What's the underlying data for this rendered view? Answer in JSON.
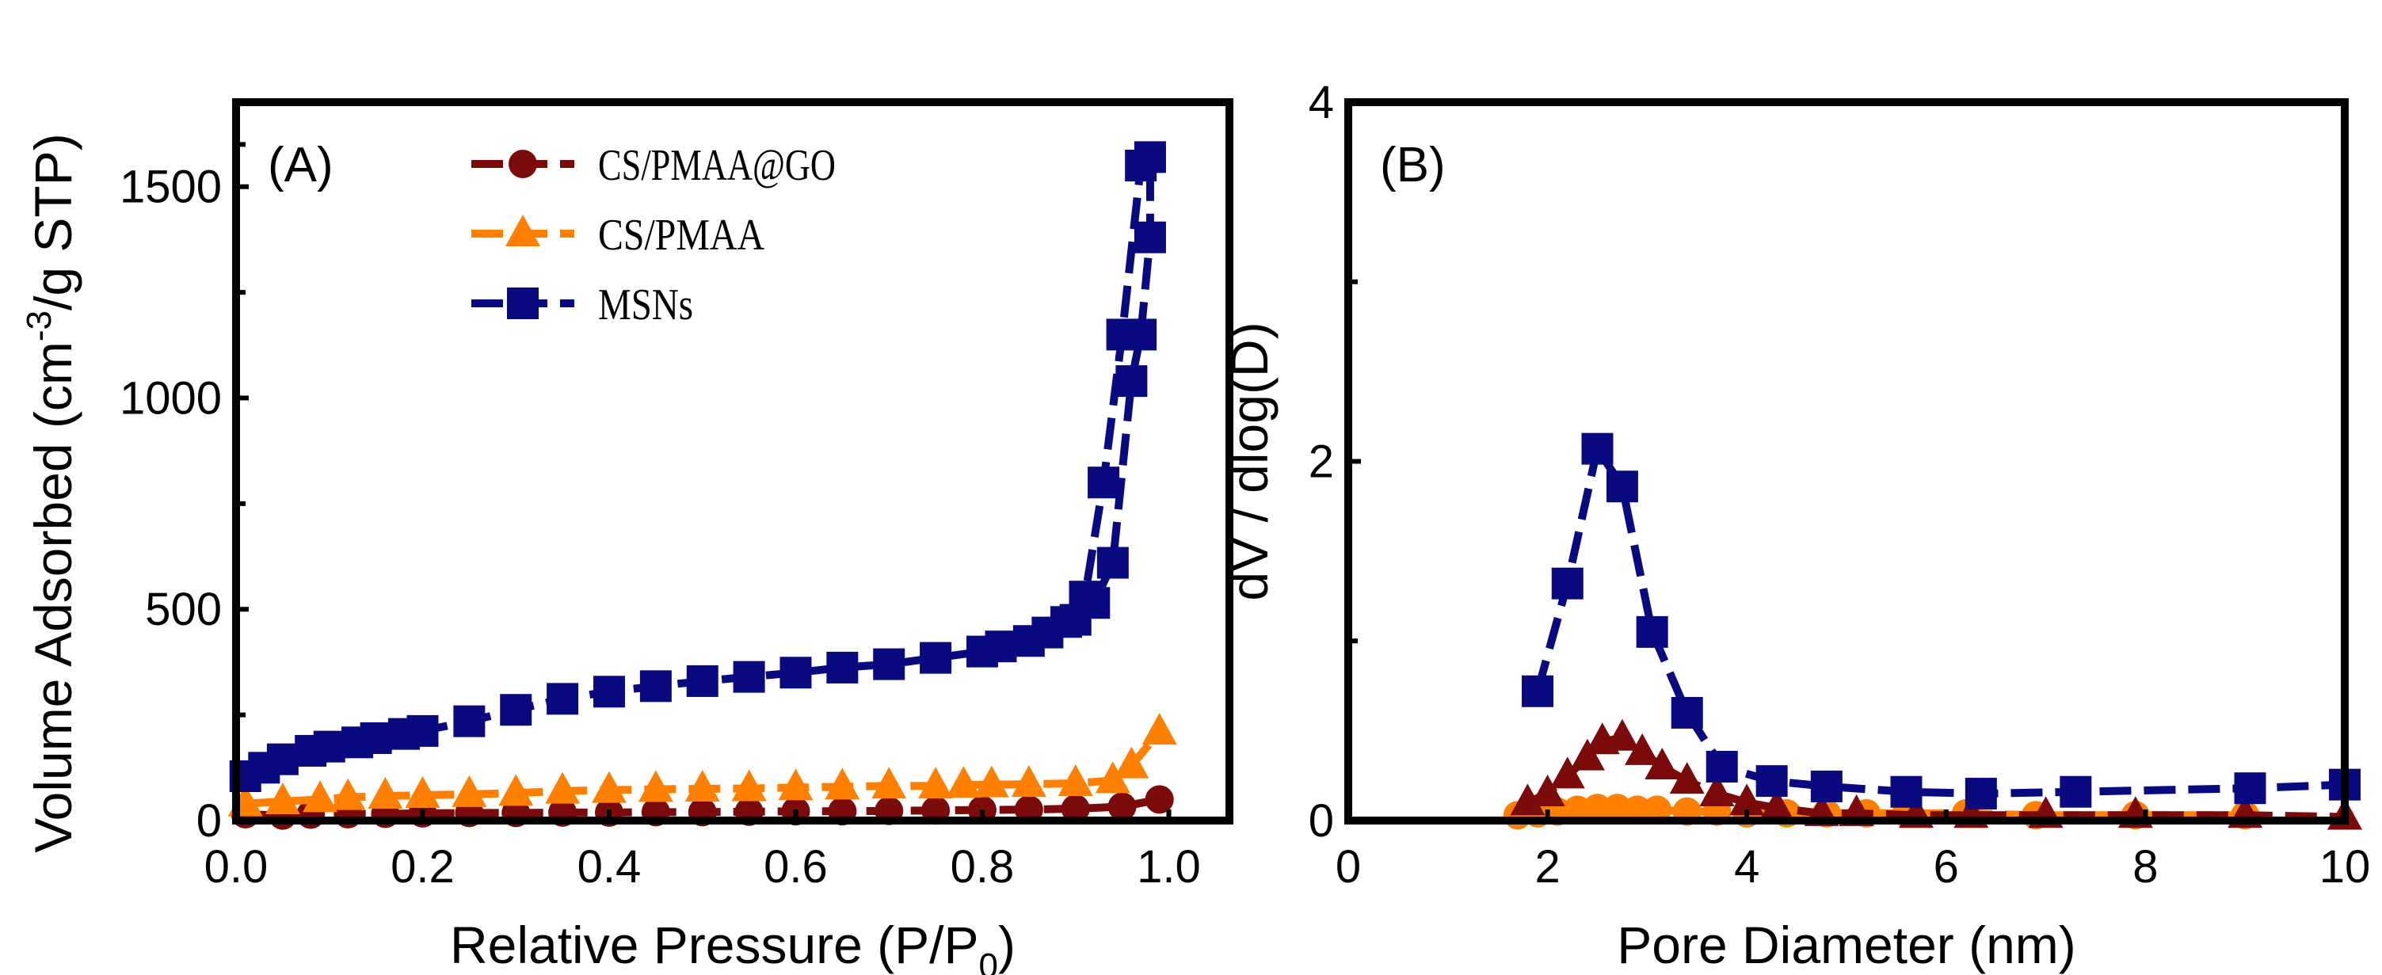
{
  "chart_data": [
    {
      "type": "scatter",
      "panel_label": "(A)",
      "xlabel": "Relative Pressure (P/P",
      "xlabel_sub": "0",
      "xlabel_end": ")",
      "ylabel": "Volume Adsorbed  (cm",
      "ylabel_sup": "-3",
      "ylabel_end": "/g STP)",
      "xlim": [
        0,
        1.065
      ],
      "ylim": [
        0,
        1700
      ],
      "xticks": [
        0.0,
        0.2,
        0.4,
        0.6,
        0.8,
        1.0
      ],
      "xtick_labels": [
        "0.0",
        "0.2",
        "0.4",
        "0.6",
        "0.8",
        "1.0"
      ],
      "yticks": [
        0,
        500,
        1000,
        1500
      ],
      "ytick_labels": [
        "0",
        "500",
        "1000",
        "1500"
      ],
      "legend_position": "top-center",
      "series": [
        {
          "name": "CS/PMAA@GO",
          "marker": "circle",
          "color": "#7b0a0a",
          "x": [
            0.01,
            0.05,
            0.08,
            0.12,
            0.16,
            0.2,
            0.25,
            0.3,
            0.35,
            0.4,
            0.45,
            0.5,
            0.55,
            0.6,
            0.65,
            0.7,
            0.75,
            0.8,
            0.85,
            0.9,
            0.95,
            0.99
          ],
          "y": [
            15,
            12,
            14,
            15,
            16,
            17,
            18,
            18,
            19,
            19,
            20,
            20,
            21,
            22,
            22,
            23,
            24,
            25,
            26,
            28,
            33,
            50
          ]
        },
        {
          "name": "CS/PMAA",
          "marker": "triangle",
          "color": "#ff8000",
          "x": [
            0.01,
            0.05,
            0.09,
            0.12,
            0.16,
            0.2,
            0.25,
            0.3,
            0.35,
            0.4,
            0.45,
            0.5,
            0.55,
            0.6,
            0.65,
            0.7,
            0.75,
            0.78,
            0.81,
            0.85,
            0.9,
            0.94,
            0.96,
            0.99
          ],
          "y": [
            40,
            45,
            50,
            55,
            58,
            60,
            62,
            65,
            70,
            72,
            74,
            75,
            76,
            78,
            80,
            82,
            82,
            84,
            85,
            86,
            88,
            95,
            130,
            210
          ]
        },
        {
          "name": "MSNs",
          "marker": "square",
          "color": "#0a0a80",
          "x": [
            0.01,
            0.03,
            0.05,
            0.08,
            0.1,
            0.13,
            0.15,
            0.18,
            0.2,
            0.25,
            0.3,
            0.35,
            0.4,
            0.45,
            0.5,
            0.55,
            0.6,
            0.65,
            0.7,
            0.75,
            0.8,
            0.82,
            0.85,
            0.87,
            0.89,
            0.91,
            0.93,
            0.95,
            0.97,
            0.98,
            0.98,
            0.97,
            0.96,
            0.94,
            0.92,
            0.9
          ],
          "y": [
            105,
            125,
            145,
            165,
            175,
            185,
            195,
            205,
            212,
            235,
            262,
            288,
            305,
            318,
            330,
            340,
            350,
            362,
            370,
            385,
            400,
            412,
            425,
            445,
            470,
            530,
            800,
            1150,
            1550,
            1570,
            1380,
            1150,
            1040,
            610,
            515,
            475
          ]
        }
      ]
    },
    {
      "type": "scatter",
      "panel_label": "(B)",
      "xlabel": "Pore Diameter (nm)",
      "ylabel": "dV / dlog(D)",
      "xlim": [
        0,
        10
      ],
      "ylim": [
        0,
        4
      ],
      "xticks": [
        0,
        2,
        4,
        6,
        8,
        10
      ],
      "xtick_labels": [
        "0",
        "2",
        "4",
        "6",
        "8",
        "10"
      ],
      "yticks": [
        0,
        2,
        4
      ],
      "ytick_labels": [
        "0",
        "2",
        "4"
      ],
      "series": [
        {
          "name": "orange-circles",
          "marker": "circle",
          "color": "#ff8000",
          "x": [
            1.7,
            1.9,
            2.1,
            2.3,
            2.5,
            2.7,
            2.9,
            3.1,
            3.4,
            3.7,
            4.0,
            4.4,
            4.8,
            5.2,
            5.6,
            6.2,
            6.9,
            7.9,
            9.0
          ],
          "y": [
            0.03,
            0.04,
            0.05,
            0.06,
            0.07,
            0.07,
            0.06,
            0.06,
            0.05,
            0.05,
            0.04,
            0.04,
            0.04,
            0.04,
            0.04,
            0.04,
            0.03,
            0.03,
            0.03
          ]
        },
        {
          "name": "brown-triangles",
          "marker": "triangle",
          "color": "#7b0a0a",
          "x": [
            1.8,
            2.0,
            2.2,
            2.4,
            2.55,
            2.75,
            2.95,
            3.15,
            3.4,
            3.7,
            4.0,
            4.3,
            4.75,
            5.1,
            5.7,
            6.25,
            7.0,
            7.9,
            9.0,
            10
          ],
          "y": [
            0.1,
            0.15,
            0.25,
            0.35,
            0.44,
            0.46,
            0.38,
            0.3,
            0.22,
            0.15,
            0.1,
            0.07,
            0.04,
            0.04,
            0.03,
            0.03,
            0.03,
            0.03,
            0.03,
            0.02
          ]
        },
        {
          "name": "MSNs",
          "marker": "square",
          "color": "#0a0a80",
          "x": [
            1.9,
            2.2,
            2.5,
            2.75,
            3.05,
            3.4,
            3.75,
            4.25,
            4.8,
            5.6,
            6.35,
            7.3,
            9.05,
            10
          ],
          "y": [
            0.72,
            1.32,
            2.07,
            1.86,
            1.05,
            0.6,
            0.3,
            0.22,
            0.19,
            0.16,
            0.15,
            0.16,
            0.18,
            0.2
          ]
        }
      ]
    }
  ]
}
